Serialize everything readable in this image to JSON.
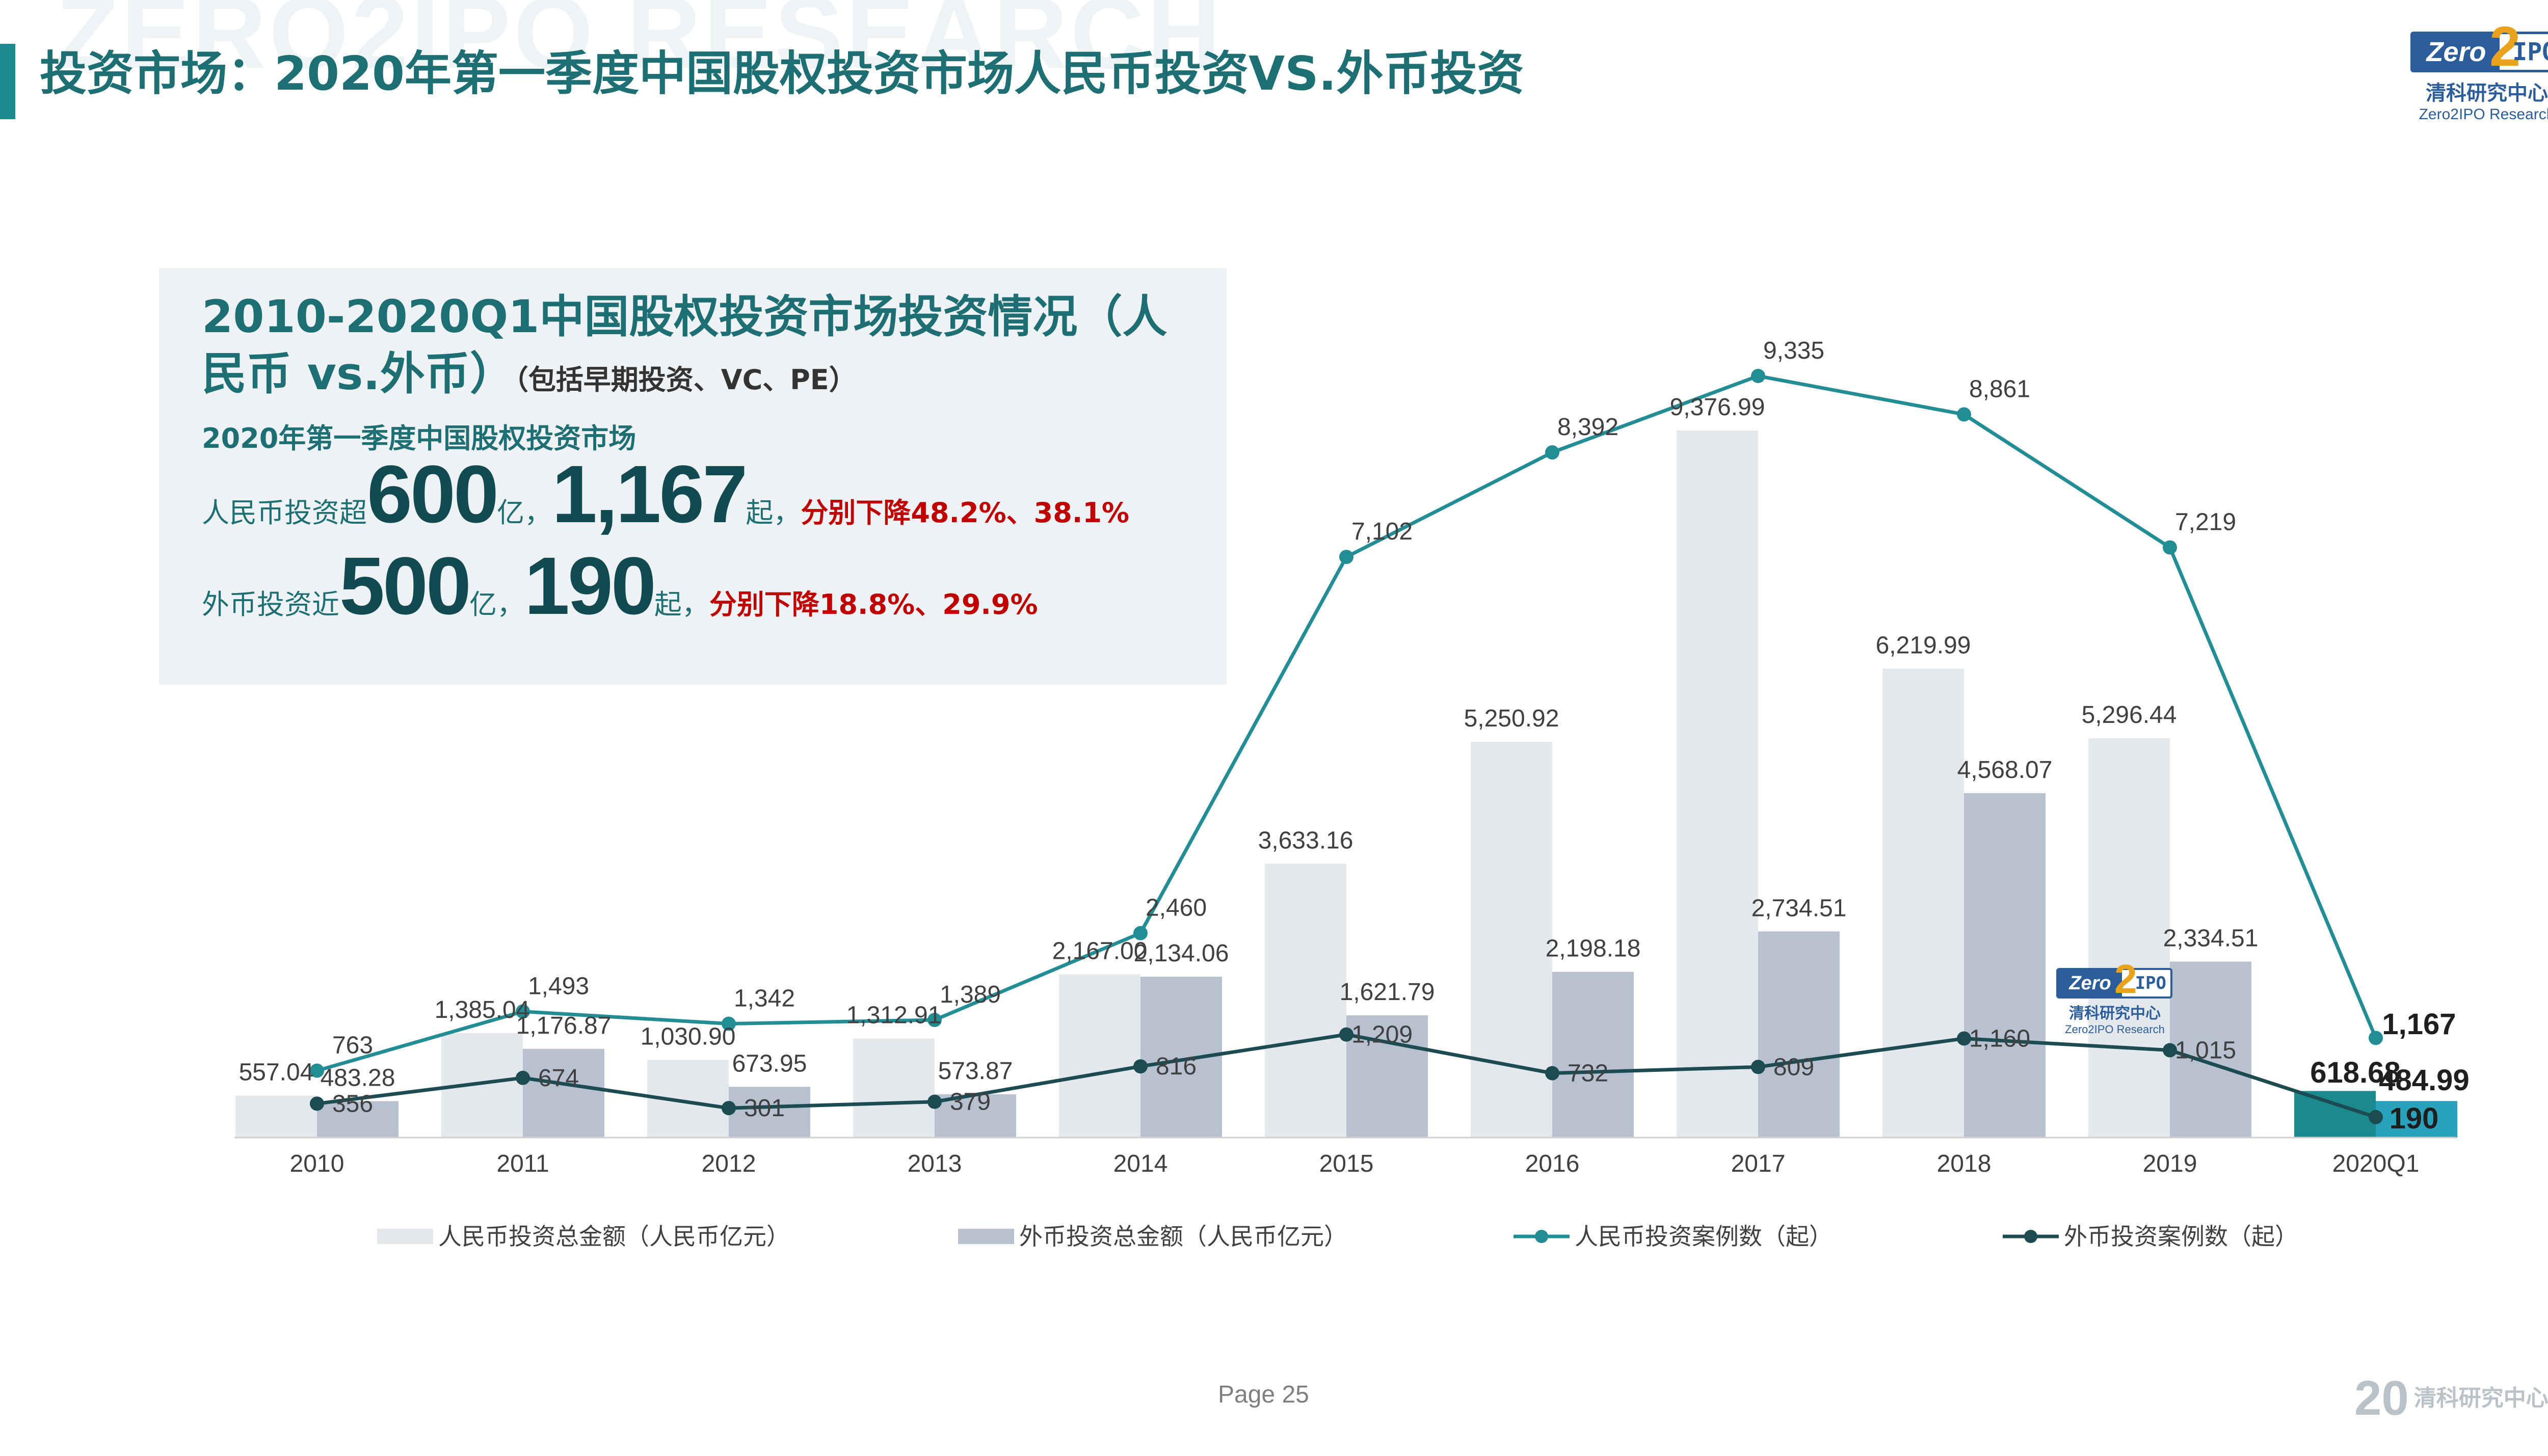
{
  "header": {
    "watermark": "ZERO2IPO RESEARCH",
    "title": "投资市场：2020年第一季度中国股权投资市场人民币投资VS.外币投资"
  },
  "logo": {
    "zero": "Zero",
    "two": "2",
    "ipo": "IPO",
    "cn": "清科研究中心",
    "en": "Zero2IPO Research"
  },
  "summary": {
    "title": "2010-2020Q1中国股权投资市场投资情况（人民币 vs.外币）",
    "title_note": "（包括早期投资、VC、PE）",
    "subtitle": "2020年第一季度中国股权投资市场",
    "rmb": {
      "prefix": "人民币投资超",
      "amount": "600",
      "unit1": "亿，",
      "count": "1,167",
      "unit2": "起，",
      "change": "分别下降48.2%、38.1%"
    },
    "fx": {
      "prefix": "外币投资近",
      "amount": "500",
      "unit1": "亿，",
      "count": "190",
      "unit2": "起，",
      "change": "分别下降18.8%、29.9%"
    }
  },
  "footer": {
    "page": "Page  25",
    "logo_num": "20",
    "logo_text": "清科研究中心"
  },
  "colors": {
    "rmb_bar": "#e4e8ec",
    "fx_bar": "#b7c1d0",
    "rmb_line": "#238d95",
    "fx_line": "#1c4b51",
    "highlight_rmb_bar": "#1b8a8f",
    "highlight_fx_bar": "#29a3bd",
    "title": "#1d6f73"
  },
  "chart_data": {
    "type": "bar",
    "categories": [
      "2010",
      "2011",
      "2012",
      "2013",
      "2014",
      "2015",
      "2016",
      "2017",
      "2018",
      "2019",
      "2020Q1"
    ],
    "series": [
      {
        "name": "人民币投资总金额（人民币亿元）",
        "type": "bar",
        "values": [
          557.04,
          1385.04,
          1030.9,
          1312.91,
          2167.0,
          3633.16,
          5250.92,
          9376.99,
          6219.99,
          5296.44,
          618.68
        ],
        "labels": [
          "557.04",
          "1,385.04",
          "1,030.90",
          "1,312.91",
          "2,167.00",
          "3,633.16",
          "5,250.92",
          "9,376.99",
          "6,219.99",
          "5,296.44",
          "618.68"
        ]
      },
      {
        "name": "外币投资总金额（人民币亿元）",
        "type": "bar",
        "values": [
          483.28,
          1176.87,
          673.95,
          573.87,
          2134.06,
          1621.79,
          2198.18,
          2734.51,
          4568.07,
          2334.51,
          484.99
        ],
        "labels": [
          "483.28",
          "1,176.87",
          "673.95",
          "573.87",
          "2,134.06",
          "1,621.79",
          "2,198.18",
          "2,734.51",
          "4,568.07",
          "2,334.51",
          "484.99"
        ]
      },
      {
        "name": "人民币投资案例数（起）",
        "type": "line",
        "values": [
          763,
          1493,
          1342,
          1389,
          2460,
          7102,
          8392,
          9335,
          8861,
          7219,
          1167
        ],
        "labels": [
          "763",
          "1,493",
          "1,342",
          "1,389",
          "2,460",
          "7,102",
          "8,392",
          "9,335",
          "8,861",
          "7,219",
          "1,167"
        ]
      },
      {
        "name": "外币投资案例数（起）",
        "type": "line",
        "values": [
          356,
          674,
          301,
          379,
          816,
          1209,
          732,
          809,
          1160,
          1015,
          190
        ],
        "labels": [
          "356",
          "674",
          "301",
          "379",
          "816",
          "1,209",
          "732",
          "809",
          "1,160",
          "1,015",
          "190"
        ]
      }
    ],
    "ylim": [
      0,
      10000
    ],
    "grid": false,
    "legend": "bottom"
  }
}
